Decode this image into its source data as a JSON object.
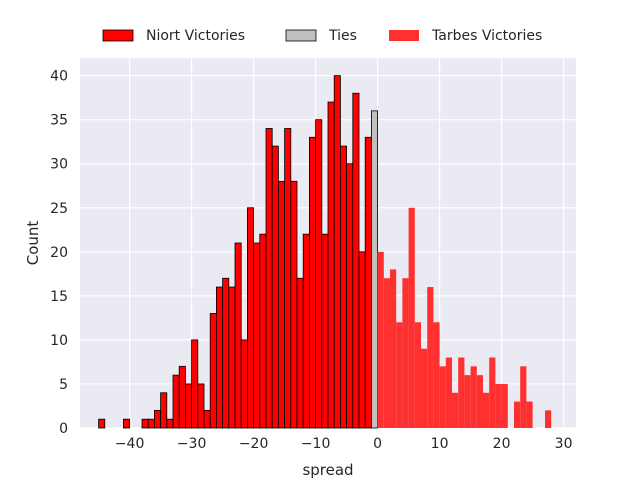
{
  "chart_data": {
    "type": "bar",
    "title": "",
    "xlabel": "spread",
    "ylabel": "Count",
    "xlim": [
      -48,
      32
    ],
    "ylim": [
      0,
      42
    ],
    "xticks": [
      -40,
      -30,
      -20,
      -10,
      0,
      10,
      20,
      30
    ],
    "yticks": [
      0,
      5,
      10,
      15,
      20,
      25,
      30,
      35,
      40
    ],
    "bin_width": 1,
    "grid": true,
    "legend_position": "top-center",
    "series": [
      {
        "name": "Niort Victories",
        "color": "#ff0000",
        "edge_color": "#000000",
        "bins": [
          {
            "x": -45,
            "count": 1
          },
          {
            "x": -41,
            "count": 1
          },
          {
            "x": -38,
            "count": 1
          },
          {
            "x": -37,
            "count": 1
          },
          {
            "x": -36,
            "count": 2
          },
          {
            "x": -35,
            "count": 4
          },
          {
            "x": -34,
            "count": 1
          },
          {
            "x": -33,
            "count": 6
          },
          {
            "x": -32,
            "count": 7
          },
          {
            "x": -31,
            "count": 5
          },
          {
            "x": -30,
            "count": 10
          },
          {
            "x": -29,
            "count": 5
          },
          {
            "x": -28,
            "count": 2
          },
          {
            "x": -27,
            "count": 13
          },
          {
            "x": -26,
            "count": 16
          },
          {
            "x": -25,
            "count": 17
          },
          {
            "x": -24,
            "count": 16
          },
          {
            "x": -23,
            "count": 21
          },
          {
            "x": -22,
            "count": 10
          },
          {
            "x": -21,
            "count": 25
          },
          {
            "x": -20,
            "count": 21
          },
          {
            "x": -19,
            "count": 22
          },
          {
            "x": -18,
            "count": 34
          },
          {
            "x": -17,
            "count": 32
          },
          {
            "x": -16,
            "count": 28
          },
          {
            "x": -15,
            "count": 34
          },
          {
            "x": -14,
            "count": 28
          },
          {
            "x": -13,
            "count": 17
          },
          {
            "x": -12,
            "count": 22
          },
          {
            "x": -11,
            "count": 33
          },
          {
            "x": -10,
            "count": 35
          },
          {
            "x": -9,
            "count": 22
          },
          {
            "x": -8,
            "count": 37
          },
          {
            "x": -7,
            "count": 40
          },
          {
            "x": -6,
            "count": 32
          },
          {
            "x": -5,
            "count": 30
          },
          {
            "x": -4,
            "count": 38
          },
          {
            "x": -3,
            "count": 20
          },
          {
            "x": -2,
            "count": 33
          }
        ]
      },
      {
        "name": "Ties",
        "color": "#c0c0c0",
        "edge_color": "#000000",
        "bins": [
          {
            "x": -1,
            "count": 36
          }
        ]
      },
      {
        "name": "Tarbes Victories",
        "color": "#ff3030",
        "edge_color": "none",
        "bins": [
          {
            "x": 0,
            "count": 20
          },
          {
            "x": 1,
            "count": 17
          },
          {
            "x": 2,
            "count": 18
          },
          {
            "x": 3,
            "count": 12
          },
          {
            "x": 4,
            "count": 17
          },
          {
            "x": 5,
            "count": 25
          },
          {
            "x": 6,
            "count": 12
          },
          {
            "x": 7,
            "count": 9
          },
          {
            "x": 8,
            "count": 16
          },
          {
            "x": 9,
            "count": 12
          },
          {
            "x": 10,
            "count": 7
          },
          {
            "x": 11,
            "count": 8
          },
          {
            "x": 12,
            "count": 4
          },
          {
            "x": 13,
            "count": 8
          },
          {
            "x": 14,
            "count": 6
          },
          {
            "x": 15,
            "count": 7
          },
          {
            "x": 16,
            "count": 6
          },
          {
            "x": 17,
            "count": 4
          },
          {
            "x": 18,
            "count": 8
          },
          {
            "x": 19,
            "count": 5
          },
          {
            "x": 20,
            "count": 5
          },
          {
            "x": 22,
            "count": 3
          },
          {
            "x": 23,
            "count": 7
          },
          {
            "x": 24,
            "count": 3
          },
          {
            "x": 27,
            "count": 2
          }
        ]
      }
    ]
  }
}
